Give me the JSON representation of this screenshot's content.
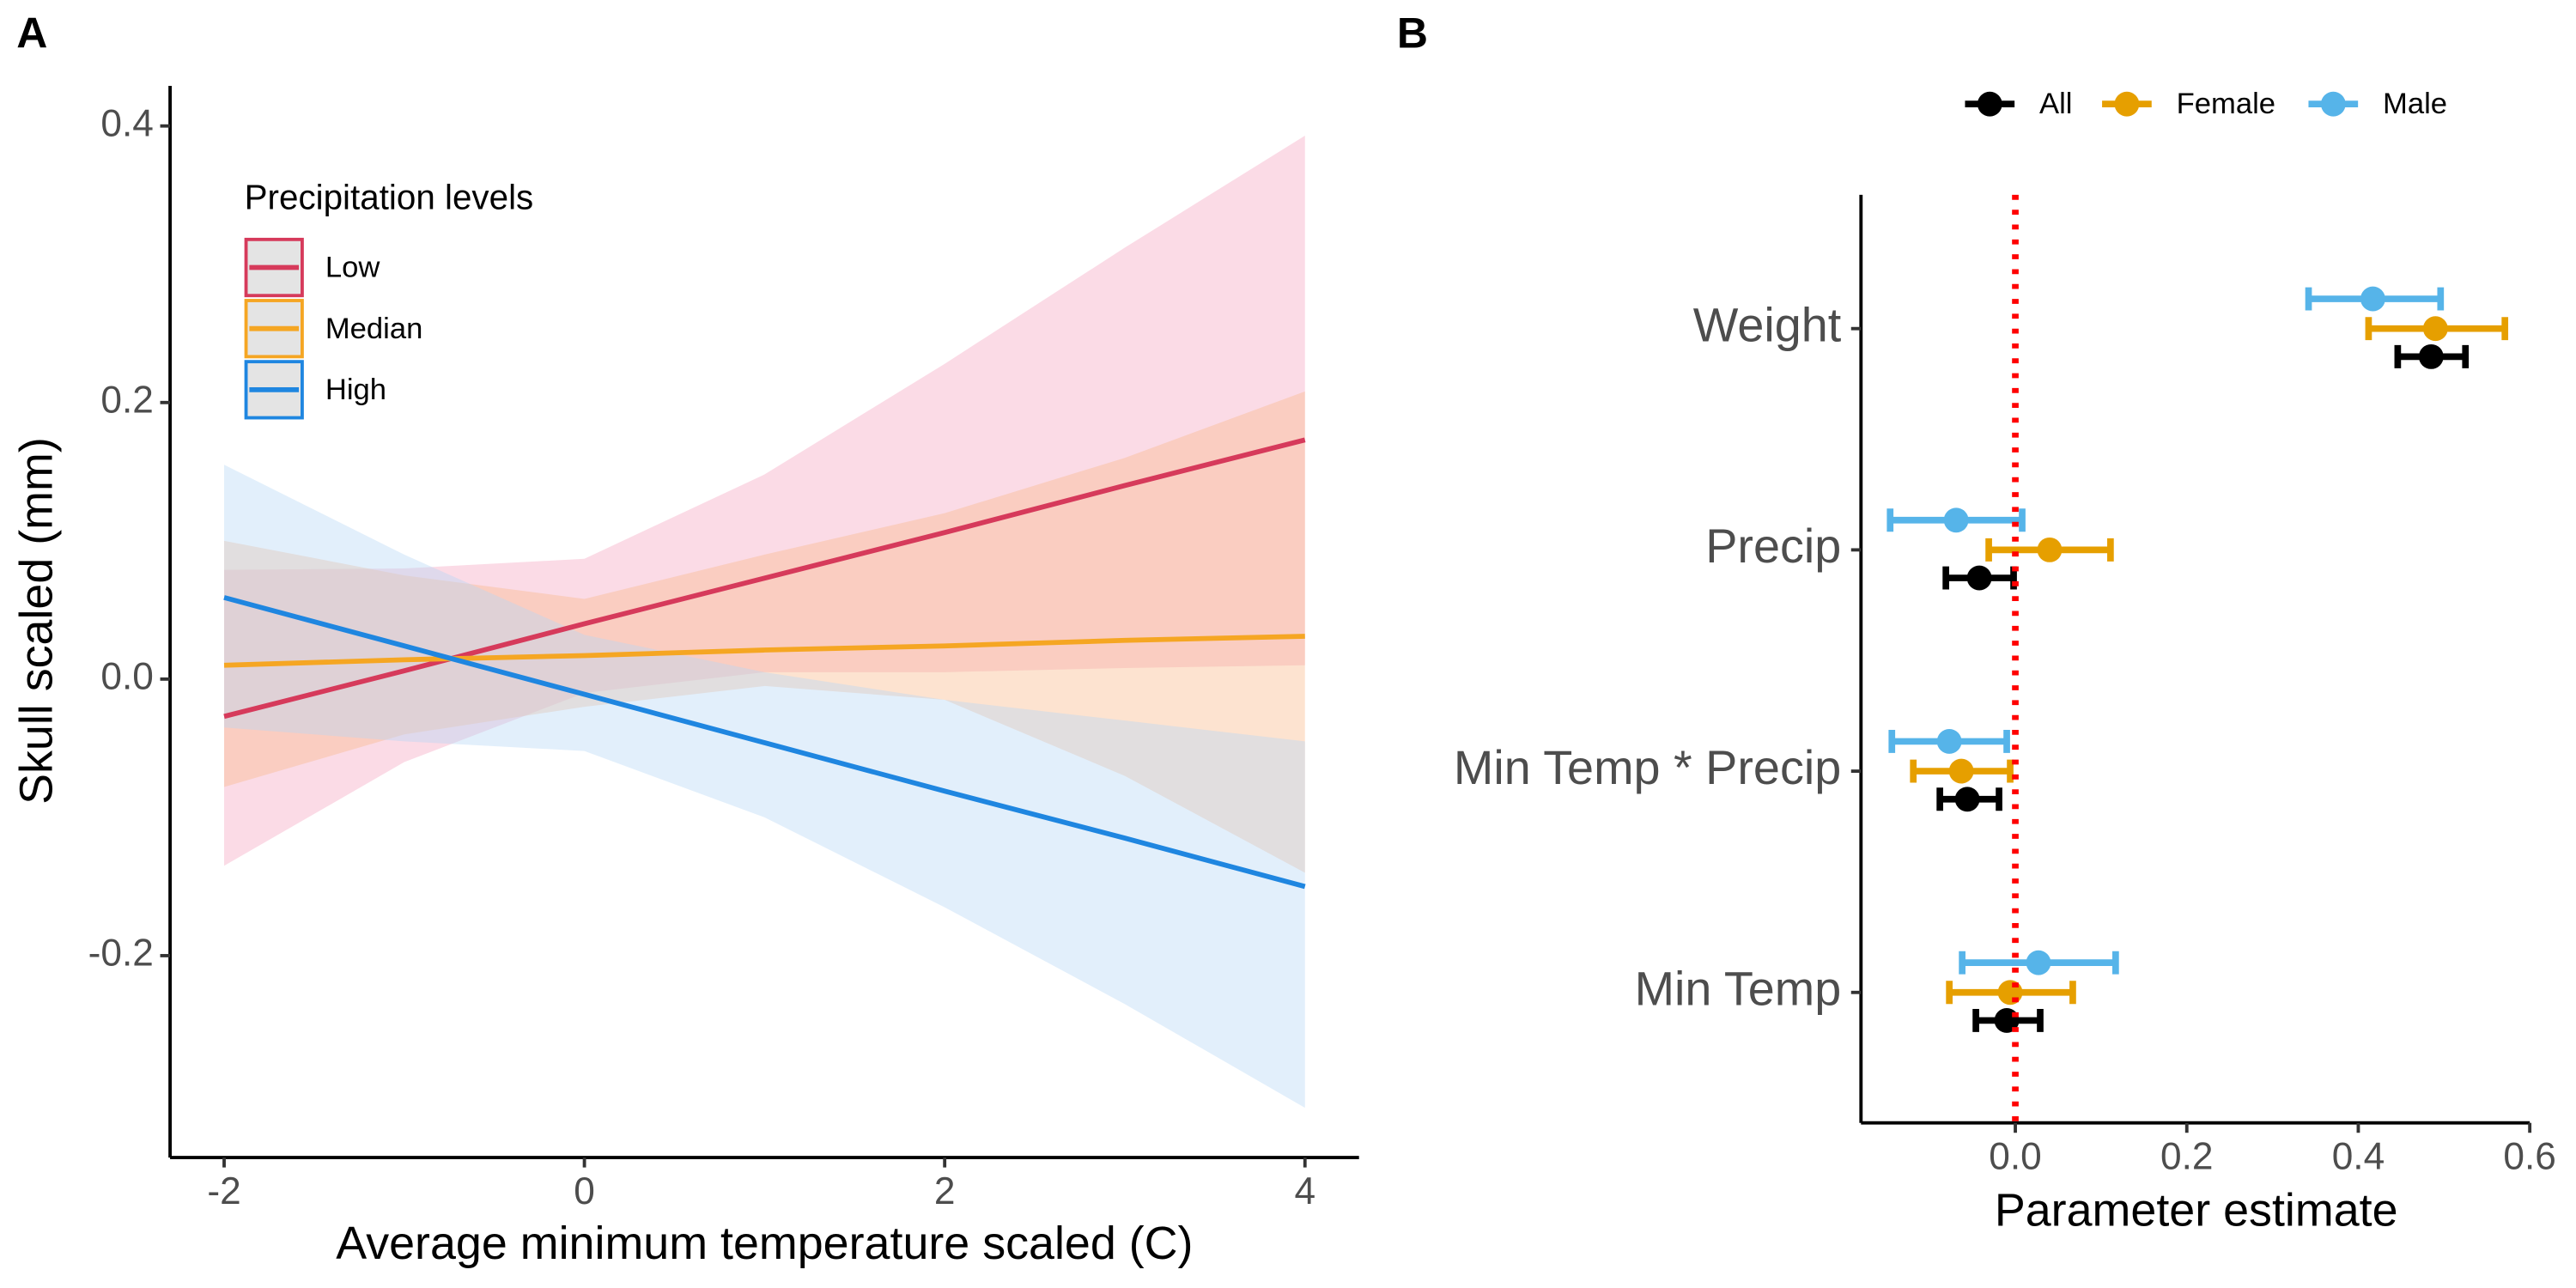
{
  "chart_data": [
    {
      "type": "line",
      "panel": "A",
      "xlabel": "Average minimum temperature scaled (C)",
      "ylabel": "Skull scaled (mm)",
      "legend_title": "Precipitation levels",
      "legend_position": "top-left",
      "x": [
        -2,
        -1,
        0,
        1,
        2,
        3,
        4
      ],
      "xlim": [
        -2.3,
        4.3
      ],
      "xticks": [
        -2,
        0,
        2,
        4
      ],
      "ylim": [
        -0.346,
        0.429
      ],
      "yticks": [
        {
          "value": -0.2,
          "label": "-0.2"
        },
        {
          "value": 0,
          "label": "0.0"
        },
        0.2,
        0.4
      ],
      "series": [
        {
          "name": "Low",
          "color": "#d63a5b",
          "band_color": "#f4a6c0",
          "values": [
            -0.027,
            0.006,
            0.04,
            0.073,
            0.106,
            0.14,
            0.173
          ],
          "lower": [
            -0.135,
            -0.06,
            -0.01,
            0.005,
            0.005,
            0.008,
            0.01
          ],
          "upper": [
            0.079,
            0.08,
            0.087,
            0.148,
            0.228,
            0.312,
            0.393
          ]
        },
        {
          "name": "Median",
          "color": "#f5a623",
          "band_color": "#fbb88a",
          "values": [
            0.01,
            0.014,
            0.017,
            0.021,
            0.024,
            0.028,
            0.031
          ],
          "lower": [
            -0.078,
            -0.04,
            -0.02,
            -0.005,
            -0.015,
            -0.07,
            -0.14
          ],
          "upper": [
            0.1,
            0.075,
            0.058,
            0.09,
            0.12,
            0.16,
            0.208
          ]
        },
        {
          "name": "High",
          "color": "#1f86e0",
          "band_color": "#b7d6f5",
          "values": [
            0.059,
            0.024,
            -0.011,
            -0.046,
            -0.081,
            -0.115,
            -0.15
          ],
          "lower": [
            -0.035,
            -0.045,
            -0.052,
            -0.1,
            -0.165,
            -0.235,
            -0.31
          ],
          "upper": [
            0.155,
            0.09,
            0.032,
            0.005,
            -0.015,
            -0.03,
            -0.045
          ]
        }
      ]
    },
    {
      "type": "dot-whisker",
      "panel": "B",
      "xlabel": "Parameter estimate",
      "legend_position": "top",
      "categories": [
        "Weight",
        "Precip",
        "Min Temp * Precip",
        "Min Temp"
      ],
      "xlim": [
        -0.18,
        0.6
      ],
      "xticks": [
        {
          "value": 0,
          "label": "0.0"
        },
        0.2,
        0.4,
        0.6
      ],
      "vline": 0,
      "vline_color": "#ff0000",
      "series": [
        {
          "name": "All",
          "color": "#000000",
          "values": [
            0.485,
            -0.042,
            -0.056,
            -0.01
          ],
          "lower": [
            0.446,
            -0.081,
            -0.088,
            -0.046
          ],
          "upper": [
            0.525,
            -0.002,
            -0.019,
            0.029
          ]
        },
        {
          "name": "Female",
          "color": "#e69f00",
          "values": [
            0.49,
            0.04,
            -0.063,
            -0.006
          ],
          "lower": [
            0.412,
            -0.031,
            -0.119,
            -0.077
          ],
          "upper": [
            0.571,
            0.111,
            -0.006,
            0.067
          ]
        },
        {
          "name": "Male",
          "color": "#56b4e9",
          "values": [
            0.417,
            -0.069,
            -0.077,
            0.027
          ],
          "lower": [
            0.342,
            -0.146,
            -0.144,
            -0.062
          ],
          "upper": [
            0.496,
            0.008,
            -0.01,
            0.117
          ]
        }
      ]
    }
  ]
}
